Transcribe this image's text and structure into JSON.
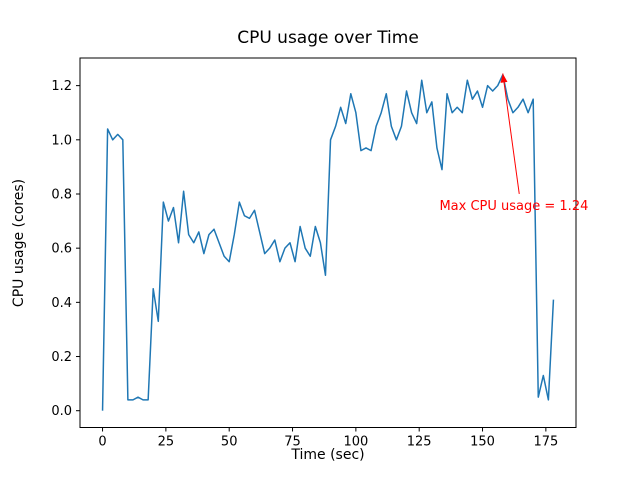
{
  "chart_data": {
    "type": "line",
    "title": "CPU usage over Time",
    "xlabel": "Time (sec)",
    "ylabel": "CPU usage (cores)",
    "line_color": "#1f77b4",
    "background": "#ffffff",
    "grid": false,
    "legend": "none",
    "xlim": [
      -8.9,
      186.9
    ],
    "ylim": [
      -0.062,
      1.302
    ],
    "x_ticks": [
      0,
      25,
      50,
      75,
      100,
      125,
      150,
      175
    ],
    "x_tick_labels": [
      "0",
      "25",
      "50",
      "75",
      "100",
      "125",
      "150",
      "175"
    ],
    "y_ticks": [
      0.0,
      0.2,
      0.4,
      0.6,
      0.8,
      1.0,
      1.2
    ],
    "y_tick_labels": [
      "0.0",
      "0.2",
      "0.4",
      "0.6",
      "0.8",
      "1.0",
      "1.2"
    ],
    "x": [
      0,
      2,
      4,
      6,
      8,
      10,
      12,
      14,
      16,
      18,
      20,
      22,
      24,
      26,
      28,
      30,
      32,
      34,
      36,
      38,
      40,
      42,
      44,
      46,
      48,
      50,
      52,
      54,
      56,
      58,
      60,
      62,
      64,
      66,
      68,
      70,
      72,
      74,
      76,
      78,
      80,
      82,
      84,
      86,
      88,
      90,
      92,
      94,
      96,
      98,
      100,
      102,
      104,
      106,
      108,
      110,
      112,
      114,
      116,
      118,
      120,
      122,
      124,
      126,
      128,
      130,
      132,
      134,
      136,
      138,
      140,
      142,
      144,
      146,
      148,
      150,
      152,
      154,
      156,
      158,
      160,
      162,
      164,
      166,
      168,
      170,
      172,
      174,
      176,
      178
    ],
    "y": [
      0.0,
      1.04,
      1.0,
      1.02,
      1.0,
      0.04,
      0.04,
      0.05,
      0.04,
      0.04,
      0.45,
      0.33,
      0.77,
      0.7,
      0.75,
      0.62,
      0.81,
      0.65,
      0.62,
      0.66,
      0.58,
      0.65,
      0.67,
      0.62,
      0.57,
      0.55,
      0.65,
      0.77,
      0.72,
      0.71,
      0.74,
      0.66,
      0.58,
      0.6,
      0.63,
      0.55,
      0.6,
      0.62,
      0.55,
      0.68,
      0.6,
      0.57,
      0.68,
      0.62,
      0.5,
      1.0,
      1.05,
      1.12,
      1.06,
      1.17,
      1.1,
      0.96,
      0.97,
      0.96,
      1.05,
      1.1,
      1.17,
      1.05,
      1.0,
      1.05,
      1.18,
      1.1,
      1.06,
      1.22,
      1.1,
      1.14,
      0.97,
      0.89,
      1.17,
      1.1,
      1.12,
      1.1,
      1.22,
      1.15,
      1.18,
      1.12,
      1.2,
      1.18,
      1.2,
      1.24,
      1.15,
      1.1,
      1.12,
      1.15,
      1.1,
      1.15,
      0.05,
      0.13,
      0.04,
      0.41
    ],
    "max_value": 1.24,
    "annotation": {
      "text": "Max CPU usage = 1.24",
      "color": "#ff0000",
      "arrow_tip": [
        158,
        1.245
      ],
      "arrow_start": [
        164.5,
        0.8
      ],
      "text_pos": [
        133,
        0.74
      ]
    }
  }
}
